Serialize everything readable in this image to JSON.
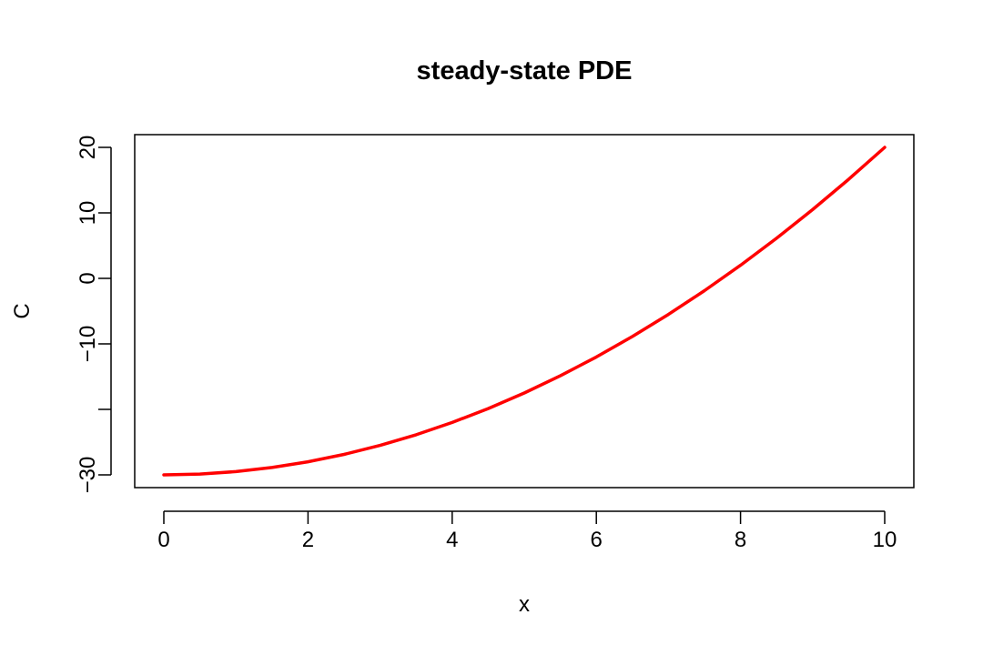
{
  "chart_data": {
    "type": "line",
    "title": "steady-state PDE",
    "xlabel": "x",
    "ylabel": "C",
    "xlim": [
      0,
      10
    ],
    "ylim": [
      -30,
      20
    ],
    "xticks": [
      0,
      2,
      4,
      6,
      8,
      10
    ],
    "xtick_labels": [
      "0",
      "2",
      "4",
      "6",
      "8",
      "10"
    ],
    "yticks": [
      -30,
      -20,
      -10,
      0,
      10,
      20
    ],
    "ytick_labels": [
      "−30",
      "",
      "−10",
      "0",
      "10",
      "20"
    ],
    "grid": false,
    "series": [
      {
        "color": "#ff0000",
        "x": [
          0,
          0.5,
          1,
          1.5,
          2,
          2.5,
          3,
          3.5,
          4,
          4.5,
          5,
          5.5,
          6,
          6.5,
          7,
          7.5,
          8,
          8.5,
          9,
          9.5,
          10
        ],
        "y": [
          -30,
          -29.875,
          -29.5,
          -28.875,
          -28,
          -26.875,
          -25.5,
          -23.875,
          -22,
          -19.875,
          -17.5,
          -14.875,
          -12,
          -8.875,
          -5.5,
          -1.875,
          2,
          6.125,
          10.5,
          15.125,
          20
        ]
      }
    ]
  }
}
